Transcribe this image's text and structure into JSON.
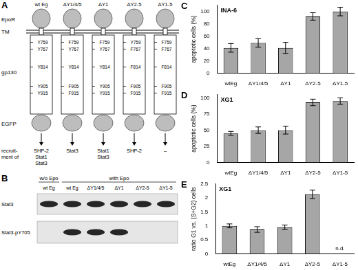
{
  "panels": {
    "A": {
      "panel_label": "A",
      "row_labels": [
        "EpoR",
        "TM",
        "gp130",
        "EGFP"
      ],
      "recruitment_label": [
        "recruit-",
        "ment of"
      ],
      "constructs": [
        {
          "name": "wt Eg",
          "residues": [
            "Y759",
            "Y767",
            "Y814",
            "Y905",
            "Y915"
          ],
          "recruits": [
            "SHP-2",
            "Stat1",
            "Stat3"
          ]
        },
        {
          "name": "ΔY1/4/5",
          "residues": [
            "F759",
            "Y767",
            "Y814",
            "F905",
            "F915"
          ],
          "recruits": [
            "Stat3"
          ]
        },
        {
          "name": "ΔY1",
          "residues": [
            "F759",
            "Y767",
            "Y814",
            "Y905",
            "Y915"
          ],
          "recruits": [
            "Stat1",
            "Stat3"
          ]
        },
        {
          "name": "ΔY2-5",
          "residues": [
            "Y759",
            "F767",
            "F814",
            "F905",
            "F915"
          ],
          "recruits": [
            "SHP-2"
          ]
        },
        {
          "name": "ΔY1-5",
          "residues": [
            "F759",
            "F767",
            "F814",
            "F905",
            "F915"
          ],
          "recruits": [
            "–"
          ]
        }
      ]
    },
    "B": {
      "panel_label": "B",
      "lanes": [
        {
          "name": "wt Eg",
          "condition": "w/o Epo"
        },
        {
          "name": "wt Eg",
          "condition": "with Epo"
        },
        {
          "name": "ΔY1/4/5",
          "condition": "with Epo"
        },
        {
          "name": "ΔY1",
          "condition": "with Epo"
        },
        {
          "name": "ΔY2-5",
          "condition": "with Epo"
        },
        {
          "name": "ΔY1-5",
          "condition": "with Epo"
        }
      ],
      "rows": [
        {
          "name": "Stat3",
          "bands": [
            true,
            true,
            true,
            true,
            true,
            true
          ]
        },
        {
          "name": "Stat3-pY705",
          "bands": [
            false,
            true,
            true,
            true,
            false,
            false
          ]
        }
      ]
    }
  },
  "chart_data": [
    {
      "type": "bar",
      "panel_label": "C",
      "title": "INA-6",
      "categories": [
        "wtEg",
        "ΔY1/4/5",
        "ΔY1",
        "ΔY2-5",
        "ΔY1-5"
      ],
      "values": [
        41,
        49,
        41,
        92,
        100
      ],
      "errors": [
        7,
        7,
        9,
        6,
        7
      ],
      "color": "#a6a6a6",
      "ylabel": "apoptotic cells (%)",
      "ylim": [
        0,
        110
      ],
      "yticks": [
        0,
        20,
        40,
        60,
        80,
        100
      ],
      "grid": false
    },
    {
      "type": "bar",
      "panel_label": "D",
      "title": "XG1",
      "categories": [
        "wtEg",
        "ΔY1/4/5",
        "ΔY1",
        "ΔY2-5",
        "ΔY1-5"
      ],
      "values": [
        45,
        50,
        50,
        93,
        95
      ],
      "errors": [
        3,
        5,
        6,
        5,
        5
      ],
      "color": "#a6a6a6",
      "ylabel": "apoptotic cells (%)",
      "ylim": [
        0,
        105
      ],
      "yticks": [
        0,
        25,
        50,
        75,
        100
      ],
      "grid": false
    },
    {
      "type": "bar",
      "panel_label": "E",
      "title": "XG1",
      "categories": [
        "wtEg",
        "ΔY1/4/5",
        "ΔY1",
        "ΔY2-5",
        "ΔY1-5"
      ],
      "values": [
        1.0,
        0.87,
        0.95,
        2.13,
        null
      ],
      "errors": [
        0.07,
        0.1,
        0.08,
        0.15,
        null
      ],
      "color": "#a6a6a6",
      "ylabel": "ratio G1 vs. (S+G2) cells",
      "ylim": [
        0,
        2.5
      ],
      "yticks": [
        0,
        0.5,
        1,
        1.5,
        2,
        2.5
      ],
      "grid": false,
      "annotations": [
        {
          "text": "n.d.",
          "category": "ΔY1-5"
        }
      ]
    }
  ]
}
